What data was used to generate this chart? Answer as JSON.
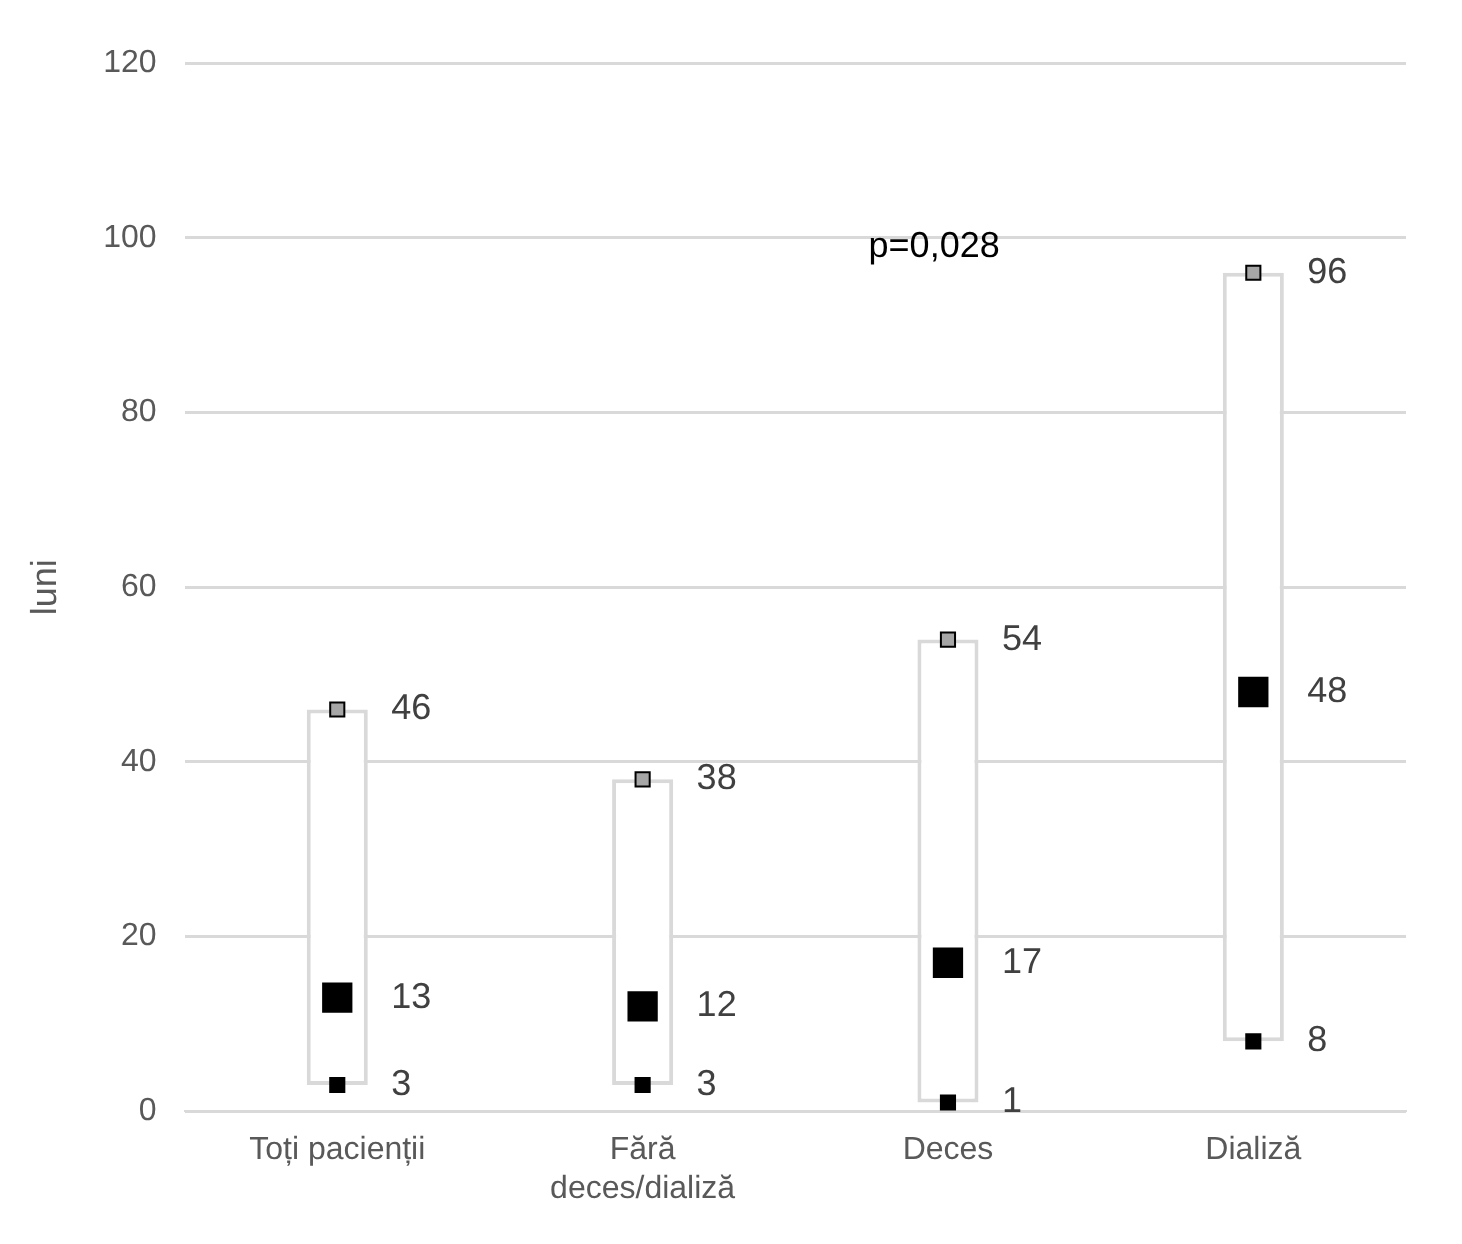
{
  "chart_data": {
    "type": "bar",
    "ylabel": "luni",
    "categories": [
      "Toți pacienții",
      "Fără deces/dializă",
      "Deces",
      "Dializă"
    ],
    "series": [
      {
        "type": "bar",
        "color": "#ffffff",
        "base": [
          3,
          3,
          1,
          8
        ],
        "values": [
          43,
          35,
          53,
          88
        ]
      },
      {
        "type": "scatter",
        "marker": "square",
        "color": "#a6a6a6",
        "x": [
          "Toți pacienții",
          "Fără deces/dializă",
          "Deces",
          "Dializă"
        ],
        "values": [
          46,
          38,
          54,
          96
        ],
        "value_labels": [
          "46",
          "38",
          "54",
          "96"
        ]
      },
      {
        "type": "scatter",
        "marker": "square",
        "color": "#000000",
        "x": [
          "Toți pacienții",
          "Fără deces/dializă",
          "Deces",
          "Dializă"
        ],
        "values": [
          13,
          12,
          17,
          48
        ],
        "value_labels": [
          "13",
          "12",
          "17",
          "48"
        ]
      },
      {
        "type": "scatter",
        "marker": "square",
        "color": "#000000",
        "x": [
          "Toți pacienții",
          "Fără deces/dializă",
          "Deces",
          "Dializă"
        ],
        "values": [
          3,
          3,
          1,
          8
        ],
        "value_labels": [
          "3",
          "3",
          "1",
          "8"
        ]
      }
    ],
    "ylim": [
      0,
      120
    ],
    "yticks": [
      0,
      20,
      40,
      60,
      80,
      100,
      120
    ],
    "grid": "y",
    "legend": false,
    "annotations": [
      "p=0,028"
    ]
  }
}
